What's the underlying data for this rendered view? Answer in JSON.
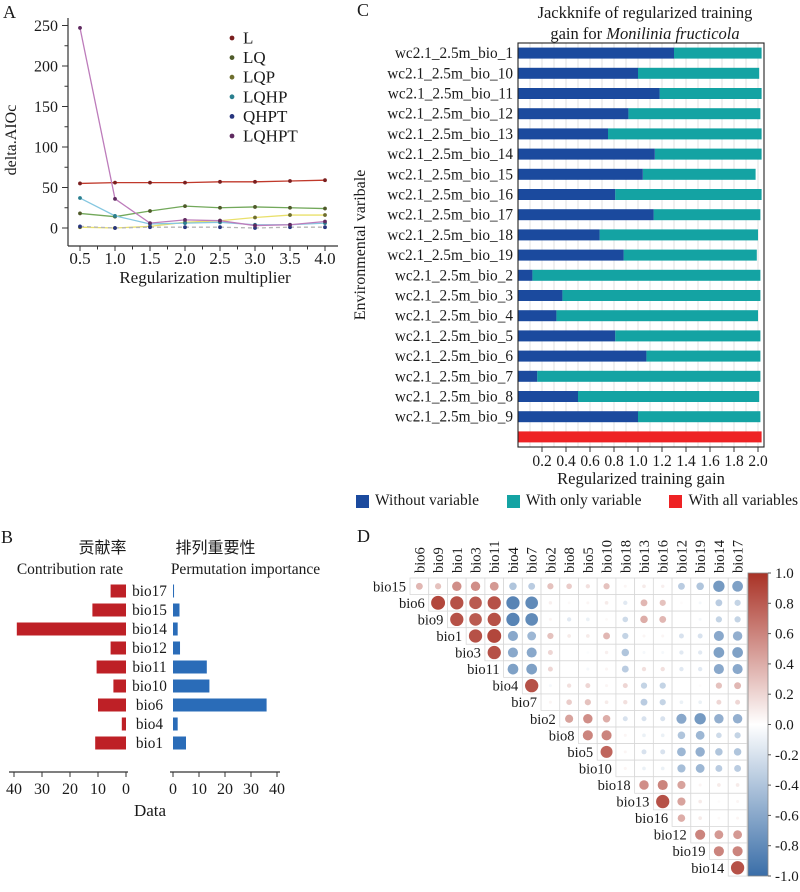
{
  "panel_labels": {
    "a": "A",
    "b": "B",
    "c": "C",
    "d": "D"
  },
  "chart_data": [
    {
      "id": "A",
      "type": "line",
      "xlabel": "Regularization multiplier",
      "ylabel": "delta.AIOc",
      "x": [
        0.5,
        1.0,
        1.5,
        2.0,
        2.5,
        3.0,
        3.5,
        4.0
      ],
      "xtick_labels": [
        "0.5",
        "1.0",
        "1.5",
        "2.0",
        "2.5",
        "3.0",
        "3.5",
        "4.0"
      ],
      "yticks": [
        0,
        50,
        100,
        150,
        200,
        250
      ],
      "ylim": [
        0,
        255
      ],
      "legend_position": "top-right",
      "grid": false,
      "series": [
        {
          "name": "L",
          "line_color": "#c0392b",
          "marker_color": "#7a1f1f",
          "dashed": false,
          "values": [
            55,
            56,
            56,
            56,
            57,
            57,
            58,
            59
          ]
        },
        {
          "name": "LQ",
          "line_color": "#72a85a",
          "marker_color": "#4f5a2a",
          "dashed": false,
          "values": [
            18,
            14,
            21,
            27,
            25,
            26,
            25,
            24
          ]
        },
        {
          "name": "LQP",
          "line_color": "#e9e06b",
          "marker_color": "#6e6e2e",
          "dashed": false,
          "values": [
            1,
            0,
            2,
            7,
            9,
            13,
            16,
            16
          ]
        },
        {
          "name": "LQHP",
          "line_color": "#85c7e0",
          "marker_color": "#2a7f8f",
          "dashed": false,
          "values": [
            37,
            15,
            5,
            6,
            7,
            4,
            4,
            6
          ]
        },
        {
          "name": "QHPT",
          "line_color": "#b5b5b5",
          "marker_color": "#27357e",
          "dashed": true,
          "values": [
            2,
            0,
            1,
            1,
            1,
            0,
            1,
            1
          ]
        },
        {
          "name": "LQHPT",
          "line_color": "#bd7cbb",
          "marker_color": "#5f2a60",
          "dashed": false,
          "values": [
            247,
            36,
            6,
            10,
            9,
            3,
            4,
            8
          ]
        }
      ]
    },
    {
      "id": "B",
      "type": "bar",
      "subtype": "dual-horizontal",
      "titles": {
        "left_zh": "贡献率",
        "left_en": "Contribution rate",
        "right_zh": "排列重要性",
        "right_en": "Permutation importance"
      },
      "categories": [
        "bio17",
        "bio15",
        "bio14",
        "bio12",
        "bio11",
        "bio10",
        "bio6",
        "bio4",
        "bio1"
      ],
      "series": [
        {
          "name": "Contribution rate",
          "color": "#be2026",
          "values": [
            5.5,
            12,
            39,
            5.5,
            10.5,
            4.5,
            10,
            1.5,
            11
          ]
        },
        {
          "name": "Permutation importance",
          "color": "#2a6cb8",
          "values": [
            0.4,
            2.5,
            1.8,
            2.7,
            13,
            14,
            36,
            1.8,
            5
          ]
        }
      ],
      "left_axis_ticks": [
        "40",
        "30",
        "20",
        "10",
        "0"
      ],
      "right_axis_ticks": [
        "0",
        "10",
        "20",
        "30",
        "40"
      ],
      "axis_max": 40,
      "xlabel": "Data"
    },
    {
      "id": "C",
      "type": "bar",
      "subtype": "stacked-horizontal",
      "title_line1": "Jackknife of regularized training",
      "title_line2_prefix": "gain for ",
      "title_species": "Monilinia fructicola",
      "ylabel": "Environmental varibale",
      "xlabel": "Regularized training gain",
      "xtick_labels": [
        "0.2",
        "0.4",
        "0.6",
        "0.8",
        "1.0",
        "1.2",
        "1.4",
        "1.6",
        "1.8",
        "2.0"
      ],
      "xlim": [
        0,
        2.05
      ],
      "categories": [
        "wc2.1_2.5m_bio_1",
        "wc2.1_2.5m_bio_10",
        "wc2.1_2.5m_bio_11",
        "wc2.1_2.5m_bio_12",
        "wc2.1_2.5m_bio_13",
        "wc2.1_2.5m_bio_14",
        "wc2.1_2.5m_bio_15",
        "wc2.1_2.5m_bio_16",
        "wc2.1_2.5m_bio_17",
        "wc2.1_2.5m_bio_18",
        "wc2.1_2.5m_bio_19",
        "wc2.1_2.5m_bio_2",
        "wc2.1_2.5m_bio_3",
        "wc2.1_2.5m_bio_4",
        "wc2.1_2.5m_bio_5",
        "wc2.1_2.5m_bio_6",
        "wc2.1_2.5m_bio_7",
        "wc2.1_2.5m_bio_8",
        "wc2.1_2.5m_bio_9"
      ],
      "without_variable": [
        1.3,
        1.0,
        1.18,
        0.92,
        0.75,
        1.14,
        1.04,
        0.81,
        1.13,
        0.68,
        0.88,
        0.12,
        0.37,
        0.32,
        0.81,
        1.07,
        0.16,
        0.5,
        1.0
      ],
      "with_only_variable": [
        2.03,
        2.01,
        2.03,
        2.02,
        2.03,
        2.03,
        1.98,
        2.03,
        2.02,
        2.0,
        1.99,
        2.02,
        2.02,
        2.0,
        2.02,
        2.02,
        2.02,
        2.01,
        2.02
      ],
      "with_all_variables": 2.03,
      "colors": {
        "without": "#1b4a9e",
        "with_only": "#14a3a3",
        "all": "#ee2224"
      },
      "legend": [
        {
          "label": "Without variable",
          "color": "#1b4a9e"
        },
        {
          "label": "With only variable",
          "color": "#14a3a3"
        },
        {
          "label": "With all variables",
          "color": "#ee2224"
        }
      ]
    },
    {
      "id": "D",
      "type": "heatmap",
      "subtype": "correlation-circles",
      "columns": [
        "bio6",
        "bio9",
        "bio1",
        "bio3",
        "bio11",
        "bio4",
        "bio7",
        "bio2",
        "bio8",
        "bio5",
        "bio10",
        "bio18",
        "bio13",
        "bio16",
        "bio12",
        "bio19",
        "bio14",
        "bio17"
      ],
      "rows": [
        "bio15",
        "bio6",
        "bio9",
        "bio1",
        "bio3",
        "bio11",
        "bio4",
        "bio7",
        "bio2",
        "bio8",
        "bio5",
        "bio10",
        "bio18",
        "bio13",
        "bio16",
        "bio12",
        "bio19",
        "bio14"
      ],
      "values": [
        [
          0.35,
          0.3,
          0.55,
          0.55,
          0.5,
          -0.4,
          -0.35,
          0.3,
          0.25,
          0.15,
          0.3,
          0.05,
          0.1,
          0.08,
          -0.35,
          -0.4,
          -0.7,
          -0.65
        ],
        [
          0.9,
          0.85,
          0.8,
          0.85,
          -0.85,
          -0.8,
          0.08,
          0.03,
          0.05,
          0.1,
          -0.15,
          0.35,
          0.3,
          0.02,
          -0.05,
          -0.35,
          -0.3
        ],
        [
          0.85,
          0.8,
          0.85,
          -0.85,
          -0.8,
          0.05,
          -0.15,
          -0.1,
          0.03,
          -0.25,
          0.4,
          0.35,
          0.0,
          -0.05,
          -0.3,
          -0.3
        ],
        [
          0.85,
          0.9,
          -0.6,
          -0.5,
          0.3,
          0.1,
          0.1,
          0.35,
          -0.3,
          0.05,
          0.05,
          -0.2,
          -0.2,
          -0.6,
          -0.55
        ],
        [
          0.85,
          -0.6,
          -0.6,
          0.2,
          0.0,
          -0.02,
          0.08,
          -0.4,
          -0.05,
          -0.05,
          -0.15,
          -0.15,
          -0.65,
          -0.65
        ],
        [
          -0.65,
          -0.65,
          0.2,
          0.0,
          -0.05,
          0.05,
          -0.35,
          0.15,
          0.15,
          -0.15,
          -0.15,
          -0.6,
          -0.6
        ],
        [
          0.85,
          -0.05,
          0.15,
          0.2,
          0.05,
          0.2,
          -0.3,
          -0.3,
          0.0,
          0.02,
          0.3,
          0.35
        ],
        [
          0.05,
          0.25,
          0.3,
          0.1,
          0.15,
          -0.35,
          -0.3,
          -0.1,
          -0.1,
          0.2,
          0.2
        ],
        [
          0.45,
          0.55,
          0.4,
          -0.2,
          -0.2,
          -0.2,
          -0.6,
          -0.7,
          -0.55,
          -0.55
        ],
        [
          0.6,
          0.6,
          0.05,
          -0.1,
          -0.1,
          -0.4,
          -0.5,
          -0.25,
          -0.3
        ],
        [
          0.75,
          0.05,
          -0.2,
          -0.2,
          -0.5,
          -0.55,
          -0.4,
          -0.4
        ],
        [
          0.05,
          -0.1,
          -0.1,
          -0.45,
          -0.5,
          -0.35,
          -0.35
        ],
        [
          0.55,
          0.6,
          0.45,
          0.05,
          0.1,
          0.1
        ],
        [
          0.85,
          0.45,
          0.1,
          0.02,
          0.05
        ],
        [
          0.4,
          0.1,
          0.03,
          0.05
        ],
        [
          0.6,
          0.5,
          0.5
        ],
        [
          0.6,
          0.6
        ],
        [
          0.85
        ]
      ],
      "colorbar_tick_labels": [
        "1.0",
        "0.8",
        "0.6",
        "0.4",
        "0.2",
        "0.0",
        "-0.2",
        "-0.4",
        "-0.6",
        "-0.8",
        "-1.0"
      ],
      "positive_color": "#a93226",
      "negative_color": "#3a6ea8"
    }
  ]
}
